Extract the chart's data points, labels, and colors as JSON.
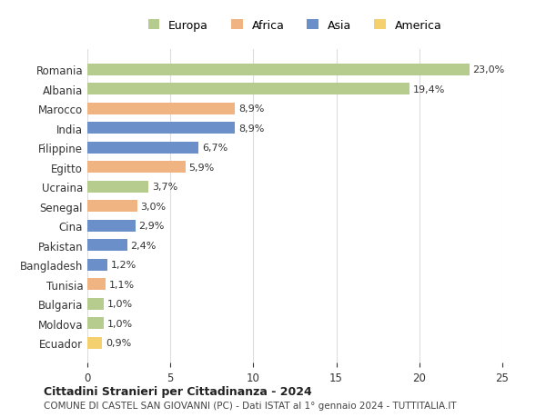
{
  "countries": [
    "Romania",
    "Albania",
    "Marocco",
    "India",
    "Filippine",
    "Egitto",
    "Ucraina",
    "Senegal",
    "Cina",
    "Pakistan",
    "Bangladesh",
    "Tunisia",
    "Bulgaria",
    "Moldova",
    "Ecuador"
  ],
  "values": [
    23.0,
    19.4,
    8.9,
    8.9,
    6.7,
    5.9,
    3.7,
    3.0,
    2.9,
    2.4,
    1.2,
    1.1,
    1.0,
    1.0,
    0.9
  ],
  "labels": [
    "23,0%",
    "19,4%",
    "8,9%",
    "8,9%",
    "6,7%",
    "5,9%",
    "3,7%",
    "3,0%",
    "2,9%",
    "2,4%",
    "1,2%",
    "1,1%",
    "1,0%",
    "1,0%",
    "0,9%"
  ],
  "continents": [
    "Europa",
    "Europa",
    "Africa",
    "Asia",
    "Asia",
    "Africa",
    "Europa",
    "Africa",
    "Asia",
    "Asia",
    "Asia",
    "Africa",
    "Europa",
    "Europa",
    "America"
  ],
  "colors": {
    "Europa": "#b5cc8e",
    "Africa": "#f0b482",
    "Asia": "#6b8fc9",
    "America": "#f5d06e"
  },
  "legend_order": [
    "Europa",
    "Africa",
    "Asia",
    "America"
  ],
  "title": "Cittadini Stranieri per Cittadinanza - 2024",
  "subtitle": "COMUNE DI CASTEL SAN GIOVANNI (PC) - Dati ISTAT al 1° gennaio 2024 - TUTTITALIA.IT",
  "xlim": [
    0,
    25
  ],
  "xticks": [
    0,
    5,
    10,
    15,
    20,
    25
  ],
  "background_color": "#ffffff",
  "grid_color": "#dddddd"
}
